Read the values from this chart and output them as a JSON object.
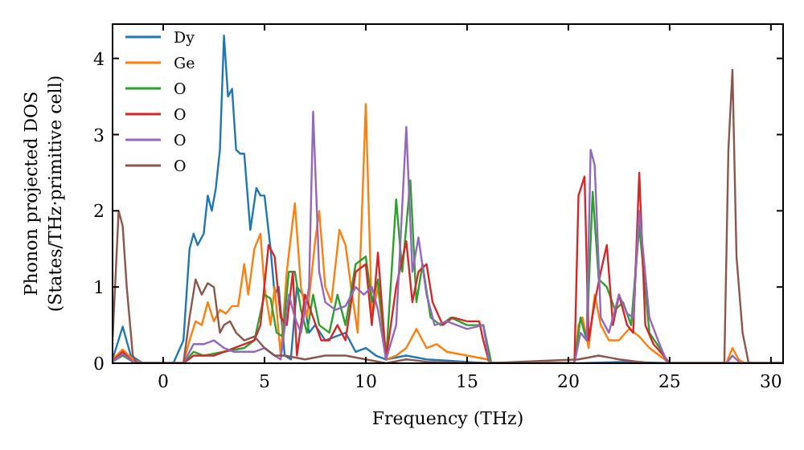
{
  "chart_data": {
    "type": "line",
    "xlabel": "Frequency (THz)",
    "ylabel": "Phonon projected DOS\n(States/THz·primitive cell)",
    "xlim": [
      -2.5,
      30.6
    ],
    "ylim": [
      0,
      4.45
    ],
    "xticks": [
      0,
      5,
      10,
      15,
      20,
      25,
      30
    ],
    "yticks": [
      0,
      1,
      2,
      3,
      4
    ],
    "legend": "top left",
    "grid": false,
    "marker": "none",
    "line_style": "solid",
    "series": [
      {
        "name": "Dy",
        "color": "#1f77b4",
        "x": [
          -2.5,
          -2,
          -1.6,
          -1,
          0,
          0.5,
          1,
          1.3,
          1.5,
          1.7,
          2,
          2.2,
          2.4,
          2.6,
          2.8,
          3,
          3.2,
          3.4,
          3.6,
          3.8,
          4,
          4.3,
          4.6,
          4.8,
          5,
          5.3,
          5.5,
          5.7,
          6,
          6.3,
          6.6,
          6.9,
          7.2,
          7.5,
          8,
          9,
          9.5,
          10,
          10.5,
          11,
          12,
          13,
          16,
          20.5,
          23,
          25,
          30.6
        ],
        "values": [
          0.05,
          0.48,
          0.1,
          0,
          0,
          0,
          0.3,
          1.5,
          1.7,
          1.55,
          1.7,
          2.2,
          2,
          2.3,
          2.8,
          4.3,
          3.5,
          3.6,
          2.8,
          2.75,
          2.75,
          1.75,
          2.3,
          2.2,
          2.2,
          1.5,
          0.9,
          1,
          0.1,
          0.05,
          1,
          0.9,
          0.4,
          0.5,
          0.3,
          0.4,
          0.15,
          0.2,
          0.1,
          0.05,
          0.1,
          0.05,
          0,
          0,
          0.02,
          0,
          0
        ]
      },
      {
        "name": "Ge",
        "color": "#ff7f0e",
        "x": [
          -2.5,
          -2,
          -1.5,
          -1,
          1,
          1.3,
          1.6,
          1.9,
          2.2,
          2.5,
          2.8,
          3.1,
          3.4,
          3.7,
          4,
          4.2,
          4.5,
          4.8,
          5,
          5.3,
          5.5,
          5.8,
          6.1,
          6.5,
          6.8,
          7.1,
          7.5,
          7.7,
          8,
          8.3,
          8.7,
          9,
          9.3,
          9.6,
          10,
          10.3,
          10.6,
          11,
          11.5,
          12,
          12.5,
          13,
          13.5,
          14,
          15,
          16,
          16.2,
          20.3,
          20.5,
          20.7,
          21,
          21.3,
          21.6,
          22,
          22.5,
          23,
          23.5,
          24,
          25,
          27.8,
          28.1,
          28.4,
          28.7,
          30.6
        ],
        "values": [
          0.05,
          0.18,
          0.05,
          0,
          0,
          0.3,
          0.55,
          0.5,
          0.8,
          0.55,
          0.7,
          0.65,
          0.75,
          0.75,
          1.3,
          0.9,
          1.5,
          1.7,
          1,
          0.5,
          1,
          0.1,
          1.2,
          2.1,
          1,
          0.6,
          1.6,
          2,
          1,
          0.8,
          1.75,
          1.55,
          0.95,
          0.4,
          3.4,
          0.6,
          1,
          0.05,
          0.1,
          0.2,
          0.45,
          0.2,
          0.25,
          0.15,
          0.1,
          0.05,
          0,
          0,
          0.5,
          0.6,
          0.2,
          0.9,
          0.5,
          0.3,
          0.3,
          0.45,
          0.35,
          0.2,
          0,
          0,
          0.2,
          0.05,
          0,
          0
        ]
      },
      {
        "name": "O",
        "color": "#2ca02c",
        "x": [
          -2.5,
          -2,
          -1.5,
          -1,
          1,
          1.5,
          2,
          3,
          4,
          4.5,
          5,
          5.3,
          5.6,
          5.9,
          6.2,
          6.5,
          6.8,
          7.1,
          7.4,
          7.7,
          8.2,
          8.6,
          9,
          9.5,
          10,
          10.3,
          10.6,
          11,
          11.5,
          11.8,
          12.2,
          12.5,
          12.8,
          13.2,
          13.7,
          14.2,
          15,
          15.8,
          16.2,
          20.3,
          20.6,
          20.9,
          21.2,
          21.5,
          21.9,
          22.3,
          22.7,
          23.1,
          23.5,
          24,
          24.5,
          24.9,
          30.6
        ],
        "values": [
          0.02,
          0.1,
          0.02,
          0,
          0,
          0.15,
          0.1,
          0.15,
          0.2,
          0.3,
          0.9,
          0.85,
          0.4,
          0.35,
          1.2,
          1.2,
          0.7,
          0.4,
          0.9,
          0.5,
          0.4,
          0.9,
          0.5,
          1.3,
          1.4,
          0.8,
          1.1,
          0.05,
          2.15,
          1.2,
          2.4,
          0.8,
          1.3,
          0.6,
          0.5,
          0.6,
          0.5,
          0.5,
          0,
          0,
          0.6,
          0.3,
          2.25,
          1.1,
          1,
          0.7,
          0.8,
          0.5,
          1.8,
          0.4,
          0.2,
          0,
          0
        ]
      },
      {
        "name": "O",
        "color": "#d62728",
        "x": [
          -2.5,
          -2,
          -1.5,
          -1,
          1,
          1.5,
          2.5,
          3.5,
          4,
          4.5,
          4.8,
          5.2,
          5.5,
          5.8,
          6.1,
          6.4,
          6.6,
          7,
          7.4,
          7.8,
          8.2,
          8.6,
          9,
          9.5,
          10,
          10.3,
          10.6,
          11,
          11.5,
          12,
          12.3,
          12.6,
          13,
          13.3,
          13.8,
          14.3,
          15,
          15.6,
          15.8,
          16.1,
          20.3,
          20.5,
          20.8,
          21,
          21.3,
          21.6,
          21.9,
          22.2,
          22.5,
          22.9,
          23.2,
          23.5,
          23.8,
          24.2,
          24.7,
          25,
          30.6
        ],
        "values": [
          0.03,
          0.15,
          0.02,
          0,
          0,
          0.1,
          0.1,
          0.2,
          0.25,
          0.3,
          0.5,
          1.55,
          1.4,
          0.6,
          0.5,
          1.2,
          0.1,
          0.9,
          0.6,
          0.3,
          0.3,
          0.5,
          0.3,
          1.2,
          1.3,
          0.5,
          1.45,
          0.05,
          1,
          1.6,
          0.8,
          1.2,
          1.3,
          0.8,
          0.5,
          0.6,
          0.55,
          0.55,
          0.3,
          0,
          0,
          2.2,
          2.45,
          0.3,
          0.8,
          1.2,
          1.55,
          0.5,
          0.9,
          0.5,
          0.4,
          2.5,
          0.5,
          0.25,
          0.1,
          0,
          0
        ]
      },
      {
        "name": "O",
        "color": "#9467bd",
        "x": [
          -2.5,
          -2,
          -1.5,
          -1,
          1,
          1.5,
          2,
          2.5,
          3,
          3.5,
          4,
          4.5,
          5,
          5.5,
          5.8,
          6.2,
          6.5,
          6.8,
          7.2,
          7.4,
          7.7,
          8,
          8.5,
          9,
          9.5,
          9.9,
          10.3,
          10.6,
          11,
          11.5,
          12,
          12.3,
          12.6,
          13,
          13.4,
          14,
          15,
          15.8,
          16.1,
          20.3,
          20.6,
          20.9,
          21.1,
          21.3,
          21.6,
          22,
          22.5,
          22.9,
          23.2,
          23.5,
          24,
          24.5,
          24.9,
          27.8,
          28.1,
          28.5,
          30.6
        ],
        "values": [
          0.02,
          0.12,
          0.02,
          0,
          0,
          0.25,
          0.25,
          0.3,
          0.2,
          0.15,
          0.15,
          0.15,
          0.2,
          0.1,
          0.05,
          0.9,
          0.6,
          0.4,
          1,
          3.3,
          1.2,
          0.8,
          0.7,
          0.75,
          1,
          0.9,
          1,
          0.7,
          0.05,
          0.5,
          3.1,
          1.2,
          1.65,
          0.9,
          0.5,
          0.55,
          0.45,
          0.5,
          0,
          0,
          0.4,
          0.3,
          2.8,
          2.6,
          0.6,
          0.4,
          0.9,
          0.65,
          0.6,
          2,
          0.6,
          0.25,
          0,
          0,
          0.1,
          0,
          0
        ]
      },
      {
        "name": "O",
        "color": "#8c564b",
        "x": [
          -2.5,
          -2.2,
          -2,
          -1.8,
          -1.5,
          -1.3,
          1,
          1.3,
          1.6,
          1.9,
          2.2,
          2.5,
          2.8,
          3,
          3.3,
          3.6,
          4,
          4.5,
          5,
          5.5,
          6,
          7,
          8,
          9,
          10,
          11,
          12,
          13,
          16,
          20.5,
          21.5,
          22.5,
          24,
          27.7,
          27.9,
          28.1,
          28.3,
          28.6,
          28.9,
          30.6
        ],
        "values": [
          0.3,
          2,
          1.8,
          1,
          0.1,
          0,
          0,
          0.6,
          1.1,
          0.9,
          1.05,
          1,
          0.4,
          0.5,
          0.55,
          0.4,
          0.3,
          0.35,
          0.2,
          0.1,
          0.1,
          0.05,
          0.1,
          0.1,
          0.05,
          0,
          0.05,
          0.02,
          0,
          0.05,
          0.1,
          0.05,
          0,
          0,
          2.8,
          3.85,
          1.4,
          0.4,
          0,
          0
        ]
      }
    ]
  }
}
